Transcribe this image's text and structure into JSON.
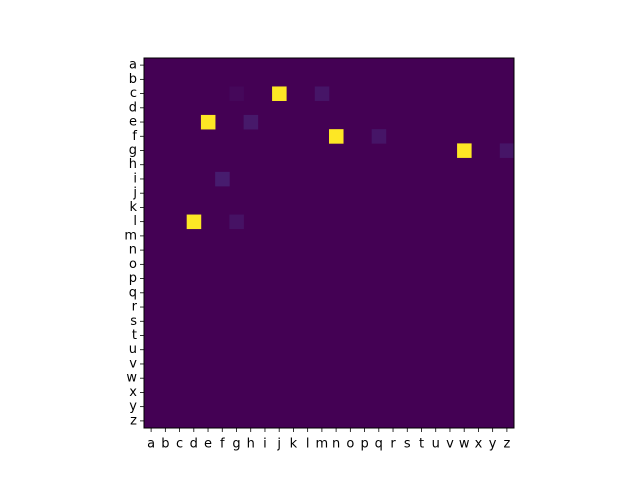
{
  "chart_data": {
    "type": "heatmap",
    "title": "",
    "xlabel": "",
    "ylabel": "",
    "x_categories": [
      "a",
      "b",
      "c",
      "d",
      "e",
      "f",
      "g",
      "h",
      "i",
      "j",
      "k",
      "l",
      "m",
      "n",
      "o",
      "p",
      "q",
      "r",
      "s",
      "t",
      "u",
      "v",
      "w",
      "x",
      "y",
      "z"
    ],
    "y_categories": [
      "a",
      "b",
      "c",
      "d",
      "e",
      "f",
      "g",
      "h",
      "i",
      "j",
      "k",
      "l",
      "m",
      "n",
      "o",
      "p",
      "q",
      "r",
      "s",
      "t",
      "u",
      "v",
      "w",
      "x",
      "y",
      "z"
    ],
    "colormap": "viridis",
    "value_range": [
      0,
      1
    ],
    "grid": false,
    "legend": "none",
    "background_value": 0,
    "cells": [
      {
        "row": "c",
        "col": "g",
        "value": 0.02
      },
      {
        "row": "c",
        "col": "j",
        "value": 1.0
      },
      {
        "row": "c",
        "col": "m",
        "value": 0.06
      },
      {
        "row": "e",
        "col": "e",
        "value": 1.0
      },
      {
        "row": "e",
        "col": "h",
        "value": 0.07
      },
      {
        "row": "f",
        "col": "n",
        "value": 1.0
      },
      {
        "row": "f",
        "col": "q",
        "value": 0.06
      },
      {
        "row": "g",
        "col": "w",
        "value": 1.0
      },
      {
        "row": "g",
        "col": "z",
        "value": 0.06
      },
      {
        "row": "i",
        "col": "f",
        "value": 0.08
      },
      {
        "row": "l",
        "col": "d",
        "value": 1.0
      },
      {
        "row": "l",
        "col": "g",
        "value": 0.05
      }
    ]
  }
}
